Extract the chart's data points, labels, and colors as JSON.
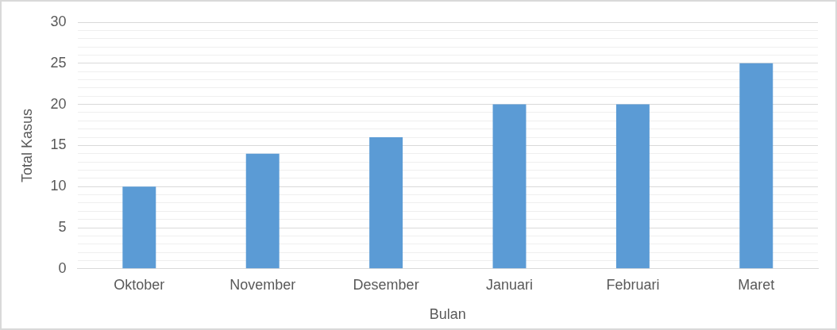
{
  "chart_data": {
    "type": "bar",
    "xlabel": "Bulan",
    "ylabel": "Total Kasus",
    "categories": [
      "Oktober",
      "November",
      "Desember",
      "Januari",
      "Februari",
      "Maret"
    ],
    "values": [
      10,
      14,
      16,
      20,
      20,
      25
    ],
    "color": "#5b9bd5",
    "ylim": [
      0,
      30
    ],
    "yticks": [
      0,
      {
        "value": 1,
        "label": null
      },
      {
        "value": 2,
        "label": null
      },
      {
        "value": 3,
        "label": null
      },
      {
        "value": 4,
        "label": null
      },
      5,
      {
        "value": 6,
        "label": null
      },
      {
        "value": 7,
        "label": null
      },
      {
        "value": 8,
        "label": null
      },
      {
        "value": 9,
        "label": null
      },
      10,
      {
        "value": 11,
        "label": null
      },
      {
        "value": 12,
        "label": null
      },
      {
        "value": 13,
        "label": null
      },
      {
        "value": 14,
        "label": null
      },
      15,
      {
        "value": 16,
        "label": null
      },
      {
        "value": 17,
        "label": null
      },
      {
        "value": 18,
        "label": null
      },
      {
        "value": 19,
        "label": null
      },
      20,
      {
        "value": 21,
        "label": null
      },
      {
        "value": 22,
        "label": null
      },
      {
        "value": 23,
        "label": null
      },
      {
        "value": 24,
        "label": null
      },
      25,
      {
        "value": 26,
        "label": null
      },
      {
        "value": 27,
        "label": null
      },
      {
        "value": 28,
        "label": null
      },
      {
        "value": 29,
        "label": null
      },
      30
    ],
    "grid": "y"
  }
}
